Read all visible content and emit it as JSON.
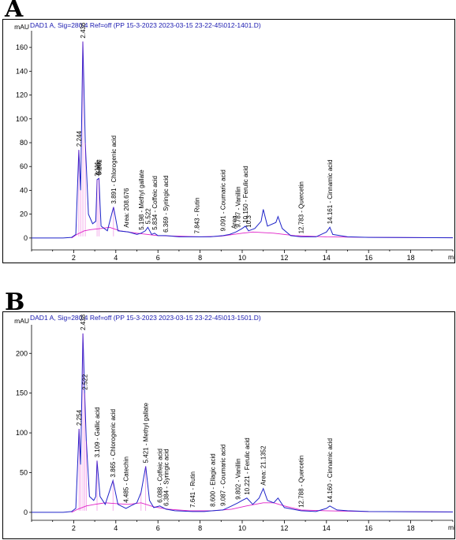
{
  "colors": {
    "trace": "#1f24c9",
    "baseline": "#e020c8",
    "header": "#1a1ab0"
  },
  "panels": [
    {
      "letter": "A",
      "header": "DAD1 A, Sig=280.4 Ref=off (PP 15-3-2023 2023-03-15 23-22-45\\012-1401.D)",
      "yunit": "mAU",
      "xunit": "mi",
      "yticks": [
        0,
        20,
        40,
        60,
        80,
        100,
        120,
        140,
        160
      ],
      "xticks": [
        2,
        4,
        6,
        8,
        10,
        12,
        14,
        16,
        18
      ]
    },
    {
      "letter": "B",
      "header": "DAD1 A, Sig=280.4 Ref=off (PP 15-3-2023 2023-03-15 23-22-45\\013-1501.D)",
      "yunit": "mAU",
      "xunit": "mi",
      "yticks": [
        0,
        50,
        100,
        150,
        200
      ],
      "xticks": [
        2,
        4,
        6,
        8,
        10,
        12,
        14,
        16,
        18
      ]
    }
  ],
  "chart_data": [
    {
      "type": "line",
      "xlim": [
        0,
        20
      ],
      "ylim": [
        -10,
        170
      ],
      "series": [
        {
          "values": [
            [
              0,
              0
            ],
            [
              1.5,
              0
            ],
            [
              1.9,
              0.5
            ],
            [
              2.1,
              3
            ],
            [
              2.244,
              74
            ],
            [
              2.33,
              40
            ],
            [
              2.436,
              165
            ],
            [
              2.55,
              80
            ],
            [
              2.7,
              20
            ],
            [
              2.9,
              12
            ],
            [
              3.05,
              14
            ],
            [
              3.111,
              49
            ],
            [
              3.2,
              50
            ],
            [
              3.3,
              10
            ],
            [
              3.6,
              6
            ],
            [
              3.891,
              26
            ],
            [
              4.1,
              6
            ],
            [
              4.6,
              5
            ],
            [
              5.0,
              3
            ],
            [
              5.198,
              4
            ],
            [
              5.4,
              6
            ],
            [
              5.522,
              9
            ],
            [
              5.7,
              3
            ],
            [
              5.834,
              4
            ],
            [
              6.0,
              2
            ],
            [
              6.369,
              2
            ],
            [
              7.0,
              1
            ],
            [
              7.843,
              1
            ],
            [
              8.5,
              1
            ],
            [
              9.091,
              2
            ],
            [
              9.4,
              3
            ],
            [
              9.7,
              5
            ],
            [
              9.8,
              6
            ],
            [
              10.0,
              8
            ],
            [
              10.15,
              10
            ],
            [
              10.3,
              6
            ],
            [
              10.6,
              8
            ],
            [
              10.9,
              14
            ],
            [
              11.0,
              24
            ],
            [
              11.2,
              10
            ],
            [
              11.6,
              13
            ],
            [
              11.7,
              18
            ],
            [
              11.9,
              8
            ],
            [
              12.3,
              2
            ],
            [
              12.783,
              1
            ],
            [
              13.5,
              1
            ],
            [
              14.0,
              5
            ],
            [
              14.161,
              9
            ],
            [
              14.3,
              3
            ],
            [
              15.0,
              1
            ],
            [
              16.0,
              0.5
            ],
            [
              20,
              0.2
            ]
          ]
        },
        {
          "values": [
            [
              1.9,
              0
            ],
            [
              2.15,
              3
            ],
            [
              2.5,
              6
            ],
            [
              2.8,
              7
            ],
            [
              3.3,
              8
            ],
            [
              3.7,
              9
            ],
            [
              4.2,
              6
            ],
            [
              5.0,
              4
            ],
            [
              6.0,
              2
            ],
            [
              7.0,
              1.5
            ],
            [
              8.0,
              1
            ],
            [
              9.0,
              1.5
            ],
            [
              10.0,
              4
            ],
            [
              10.5,
              5
            ],
            [
              11.5,
              4
            ],
            [
              12.5,
              2
            ],
            [
              14.0,
              1
            ],
            [
              16.0,
              0.5
            ],
            [
              20,
              0.2
            ]
          ]
        }
      ],
      "peak_labels": [
        "2.244",
        "2.436",
        "3.111",
        "Gallic",
        "3.202",
        "3.891 - Chlorogenic acid",
        "Area: 208.676",
        "5.198 - Methyl gallate",
        "5.522",
        "5.834 - Coffeic acid",
        "6.369 - Syringic acid",
        "7.843 - Rutin",
        "9.091 - Coumaric acid",
        "Area",
        "9.787 - Vanillin",
        "10.150 - Ferulic acid",
        "10.3",
        "12.783 - Quercetin",
        "14.161 - Cinnamic acid"
      ]
    },
    {
      "type": "line",
      "xlim": [
        0,
        20
      ],
      "ylim": [
        -10,
        230
      ],
      "series": [
        {
          "values": [
            [
              0,
              0
            ],
            [
              1.5,
              0
            ],
            [
              1.9,
              1
            ],
            [
              2.1,
              5
            ],
            [
              2.254,
              105
            ],
            [
              2.33,
              60
            ],
            [
              2.438,
              225
            ],
            [
              2.52,
              150
            ],
            [
              2.6,
              90
            ],
            [
              2.75,
              20
            ],
            [
              2.95,
              15
            ],
            [
              3.05,
              20
            ],
            [
              3.109,
              65
            ],
            [
              3.25,
              20
            ],
            [
              3.5,
              10
            ],
            [
              3.865,
              40
            ],
            [
              4.1,
              10
            ],
            [
              4.485,
              5
            ],
            [
              4.7,
              8
            ],
            [
              5.0,
              12
            ],
            [
              5.2,
              25
            ],
            [
              5.421,
              58
            ],
            [
              5.6,
              15
            ],
            [
              5.8,
              6
            ],
            [
              6.088,
              8
            ],
            [
              6.384,
              4
            ],
            [
              6.8,
              2
            ],
            [
              7.641,
              1
            ],
            [
              8.2,
              1
            ],
            [
              8.6,
              2
            ],
            [
              9.087,
              3
            ],
            [
              9.5,
              8
            ],
            [
              9.802,
              12
            ],
            [
              10.0,
              15
            ],
            [
              10.221,
              18
            ],
            [
              10.5,
              10
            ],
            [
              10.8,
              18
            ],
            [
              11.0,
              30
            ],
            [
              11.2,
              15
            ],
            [
              11.5,
              12
            ],
            [
              11.7,
              18
            ],
            [
              12.0,
              6
            ],
            [
              12.788,
              2
            ],
            [
              13.5,
              1
            ],
            [
              14.0,
              5
            ],
            [
              14.16,
              8
            ],
            [
              14.5,
              3
            ],
            [
              15.0,
              2
            ],
            [
              16.0,
              1
            ],
            [
              20,
              0.5
            ]
          ]
        },
        {
          "values": [
            [
              1.9,
              0
            ],
            [
              2.2,
              4
            ],
            [
              2.6,
              8
            ],
            [
              3.0,
              10
            ],
            [
              3.5,
              12
            ],
            [
              4.0,
              11
            ],
            [
              4.6,
              10
            ],
            [
              5.2,
              12
            ],
            [
              5.8,
              7
            ],
            [
              6.5,
              4
            ],
            [
              7.5,
              2
            ],
            [
              8.6,
              2
            ],
            [
              9.5,
              4
            ],
            [
              10.2,
              8
            ],
            [
              11.0,
              12
            ],
            [
              11.5,
              12
            ],
            [
              12.0,
              8
            ],
            [
              12.8,
              3
            ],
            [
              14.0,
              2
            ],
            [
              16.0,
              1
            ],
            [
              20,
              0.5
            ]
          ]
        }
      ],
      "peak_labels": [
        "2.254",
        "2.438",
        "2.522",
        "3.109 - Gallic acid",
        "3.865 - Chlorogenic acid",
        "4.485 - Catechin",
        "5.421 - Methyl gallate",
        "6.088 - Coffeic acid",
        "6.384 - Syringic acid",
        "7.641 - Rutin",
        "8.600 - Ellagic acid",
        "9.087 - Coumaric acid",
        "9.802 - Vanillin",
        "10.221 - Ferulic acid",
        "Area: 21.1352",
        "12.788 - Quercetin",
        "14.160 - Cinnamic acid"
      ]
    }
  ]
}
